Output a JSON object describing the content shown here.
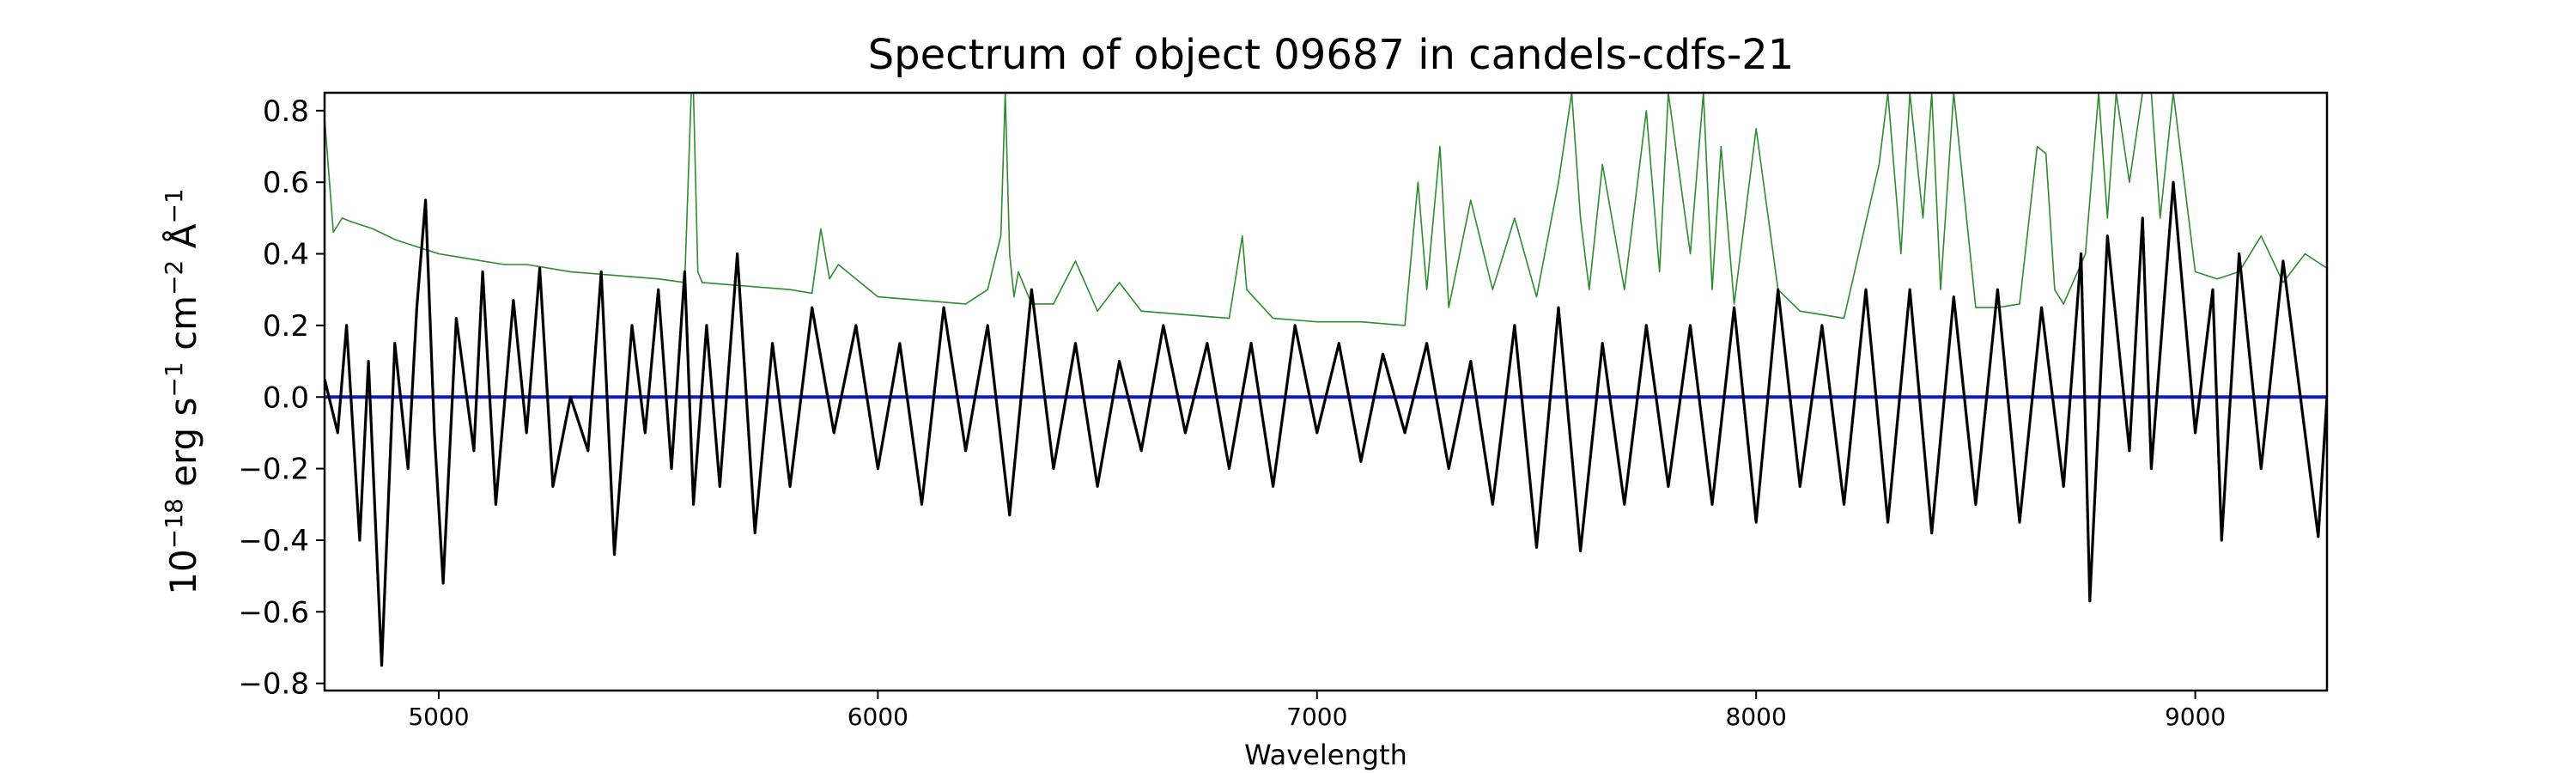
{
  "chart_data": {
    "type": "line",
    "title": "Spectrum of object 09687 in candels-cdfs-21",
    "xlabel": "Wavelength",
    "ylabel": {
      "base": "10",
      "exp": "−18",
      "parts": [
        {
          "t": "10",
          "s": false
        },
        {
          "t": "−18",
          "s": true
        },
        {
          "t": " erg s",
          "s": false
        },
        {
          "t": "−1",
          "s": true
        },
        {
          "t": " cm",
          "s": false
        },
        {
          "t": "−2",
          "s": true
        },
        {
          "t": " Å",
          "s": false
        },
        {
          "t": "−1",
          "s": true
        }
      ]
    },
    "xlim": [
      4740,
      9300
    ],
    "ylim": [
      -0.82,
      0.85
    ],
    "xticks": [
      5000,
      6000,
      7000,
      8000,
      9000
    ],
    "xtick_labels": [
      "5000",
      "6000",
      "7000",
      "8000",
      "9000"
    ],
    "yticks": [
      -0.8,
      -0.6,
      -0.4,
      -0.2,
      0.0,
      0.2,
      0.4,
      0.6,
      0.8
    ],
    "ytick_labels": [
      "−0.8",
      "−0.6",
      "−0.4",
      "−0.2",
      "0.0",
      "0.2",
      "0.4",
      "0.6",
      "0.8"
    ],
    "grid": false,
    "series": [
      {
        "role": "error",
        "color": "#2e8b2e",
        "x": [
          4740,
          4760,
          4780,
          4800,
          4850,
          4900,
          4950,
          5000,
          5050,
          5100,
          5150,
          5200,
          5300,
          5400,
          5500,
          5560,
          5575,
          5580,
          5590,
          5600,
          5700,
          5800,
          5850,
          5870,
          5890,
          5910,
          6000,
          6100,
          6200,
          6250,
          6280,
          6290,
          6300,
          6310,
          6320,
          6350,
          6400,
          6450,
          6500,
          6550,
          6600,
          6700,
          6800,
          6830,
          6840,
          6900,
          7000,
          7100,
          7200,
          7230,
          7250,
          7280,
          7300,
          7350,
          7400,
          7450,
          7500,
          7550,
          7580,
          7600,
          7620,
          7650,
          7700,
          7750,
          7780,
          7800,
          7850,
          7880,
          7900,
          7920,
          7950,
          8000,
          8050,
          8100,
          8200,
          8280,
          8300,
          8330,
          8350,
          8380,
          8400,
          8420,
          8450,
          8500,
          8550,
          8600,
          8640,
          8660,
          8680,
          8700,
          8750,
          8780,
          8800,
          8820,
          8850,
          8880,
          8900,
          8920,
          8950,
          9000,
          9050,
          9100,
          9150,
          9200,
          9250,
          9300
        ],
        "y": [
          0.78,
          0.46,
          0.5,
          0.49,
          0.47,
          0.44,
          0.42,
          0.4,
          0.39,
          0.38,
          0.37,
          0.37,
          0.35,
          0.34,
          0.33,
          0.32,
          0.85,
          0.85,
          0.35,
          0.32,
          0.31,
          0.3,
          0.29,
          0.47,
          0.33,
          0.37,
          0.28,
          0.27,
          0.26,
          0.3,
          0.45,
          0.85,
          0.4,
          0.28,
          0.35,
          0.26,
          0.26,
          0.38,
          0.24,
          0.32,
          0.24,
          0.23,
          0.22,
          0.45,
          0.3,
          0.22,
          0.21,
          0.21,
          0.2,
          0.6,
          0.3,
          0.7,
          0.25,
          0.55,
          0.3,
          0.5,
          0.28,
          0.6,
          0.85,
          0.5,
          0.3,
          0.65,
          0.3,
          0.8,
          0.35,
          0.85,
          0.4,
          0.85,
          0.3,
          0.7,
          0.26,
          0.75,
          0.3,
          0.24,
          0.22,
          0.65,
          0.85,
          0.4,
          0.85,
          0.5,
          0.85,
          0.3,
          0.85,
          0.25,
          0.25,
          0.26,
          0.7,
          0.68,
          0.3,
          0.26,
          0.4,
          0.85,
          0.5,
          0.85,
          0.6,
          0.85,
          0.85,
          0.5,
          0.85,
          0.35,
          0.33,
          0.35,
          0.45,
          0.32,
          0.4,
          0.36
        ]
      },
      {
        "role": "flux",
        "color": "#000000",
        "x": [
          4740,
          4770,
          4790,
          4820,
          4840,
          4870,
          4900,
          4930,
          4950,
          4970,
          4990,
          5010,
          5040,
          5080,
          5100,
          5130,
          5170,
          5200,
          5230,
          5260,
          5300,
          5340,
          5370,
          5400,
          5440,
          5470,
          5500,
          5530,
          5560,
          5580,
          5610,
          5640,
          5680,
          5720,
          5760,
          5800,
          5850,
          5900,
          5950,
          6000,
          6050,
          6100,
          6150,
          6200,
          6250,
          6300,
          6350,
          6400,
          6450,
          6500,
          6550,
          6600,
          6650,
          6700,
          6750,
          6800,
          6850,
          6900,
          6950,
          7000,
          7050,
          7100,
          7150,
          7200,
          7250,
          7300,
          7350,
          7400,
          7450,
          7500,
          7550,
          7600,
          7650,
          7700,
          7750,
          7800,
          7850,
          7900,
          7950,
          8000,
          8050,
          8100,
          8150,
          8200,
          8250,
          8300,
          8350,
          8400,
          8450,
          8500,
          8550,
          8600,
          8650,
          8700,
          8740,
          8760,
          8800,
          8850,
          8880,
          8900,
          8950,
          9000,
          9040,
          9060,
          9100,
          9150,
          9200,
          9250,
          9280,
          9300
        ],
        "y": [
          0.05,
          -0.1,
          0.2,
          -0.4,
          0.1,
          -0.75,
          0.15,
          -0.2,
          0.25,
          0.55,
          -0.1,
          -0.52,
          0.22,
          -0.15,
          0.35,
          -0.3,
          0.27,
          -0.1,
          0.36,
          -0.25,
          0.0,
          -0.15,
          0.35,
          -0.44,
          0.2,
          -0.1,
          0.3,
          -0.2,
          0.35,
          -0.3,
          0.2,
          -0.25,
          0.4,
          -0.38,
          0.15,
          -0.25,
          0.25,
          -0.1,
          0.2,
          -0.2,
          0.15,
          -0.3,
          0.25,
          -0.15,
          0.2,
          -0.33,
          0.3,
          -0.2,
          0.15,
          -0.25,
          0.1,
          -0.15,
          0.2,
          -0.1,
          0.15,
          -0.2,
          0.15,
          -0.25,
          0.2,
          -0.1,
          0.15,
          -0.18,
          0.12,
          -0.1,
          0.15,
          -0.2,
          0.1,
          -0.3,
          0.2,
          -0.42,
          0.25,
          -0.43,
          0.15,
          -0.3,
          0.2,
          -0.25,
          0.2,
          -0.3,
          0.25,
          -0.35,
          0.3,
          -0.25,
          0.2,
          -0.3,
          0.3,
          -0.35,
          0.3,
          -0.38,
          0.28,
          -0.3,
          0.3,
          -0.35,
          0.25,
          -0.25,
          0.4,
          -0.57,
          0.45,
          -0.15,
          0.5,
          -0.2,
          0.6,
          -0.1,
          0.3,
          -0.4,
          0.4,
          -0.2,
          0.38,
          -0.1,
          -0.39,
          0.0
        ]
      },
      {
        "role": "zero",
        "color": "#1020b0",
        "x": [
          4740,
          9300
        ],
        "y": [
          0.0,
          0.0
        ]
      }
    ]
  }
}
